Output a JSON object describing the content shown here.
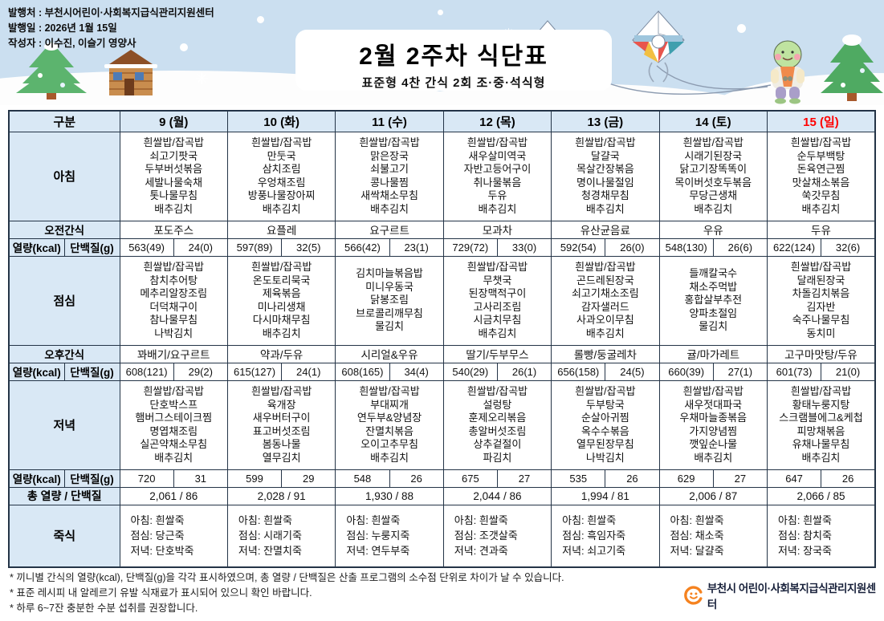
{
  "info": {
    "publisher": "발행처 : 부천시어린이·사회복지급식관리지원센터",
    "publish_date": "발행일 : 2026년 1월 15일",
    "author": "작성자 : 이수진, 이슬기 영양사"
  },
  "title": {
    "main": "2월 2주차 식단표",
    "subtitle": "표준형 4찬 간식 2회 조·중·석식형"
  },
  "table": {
    "labels": {
      "gubun": "구분",
      "breakfast": "아침",
      "am_snack": "오전간식",
      "kcal": "열량(kcal)",
      "protein": "단백질(g)",
      "lunch": "점심",
      "pm_snack": "오후간식",
      "dinner": "저녁",
      "total": "총 열량 / 단백질",
      "porridge": "죽식"
    },
    "days": [
      {
        "label": "9 (월)",
        "breakfast": [
          "흰쌀밥/잡곡밥",
          "쇠고기팟국",
          "두부버섯볶음",
          "세발나물숙채",
          "톳나물무침",
          "배추김치"
        ],
        "am_snack": "포도주스",
        "breakfast_kcal": "563(49)",
        "breakfast_protein": "24(0)",
        "lunch": [
          "흰쌀밥/잡곡밥",
          "참치추어탕",
          "메추리알장조림",
          "더덕채구이",
          "참나물무침",
          "나박김치"
        ],
        "pm_snack": "꽈배기/요구르트",
        "lunch_kcal": "608(121)",
        "lunch_protein": "29(2)",
        "dinner": [
          "흰쌀밥/잡곡밥",
          "단호박스프",
          "햄버그스테이크찜",
          "명엽채조림",
          "실곤약채소무침",
          "배추김치"
        ],
        "dinner_kcal": "720",
        "dinner_protein": "31",
        "total": "2,061  /  86",
        "porridge": [
          "아침: 흰쌀죽",
          "점심: 당근죽",
          "저녁: 단호박죽"
        ]
      },
      {
        "label": "10 (화)",
        "breakfast": [
          "흰쌀밥/잡곡밥",
          "만둣국",
          "삼치조림",
          "우엉채조림",
          "방풍나물장아찌",
          "배추김치"
        ],
        "am_snack": "요플레",
        "breakfast_kcal": "597(89)",
        "breakfast_protein": "32(5)",
        "lunch": [
          "흰쌀밥/잡곡밥",
          "온도토리묵국",
          "제육볶음",
          "미나리생채",
          "다시마채무침",
          "배추김치"
        ],
        "pm_snack": "약과/두유",
        "lunch_kcal": "615(127)",
        "lunch_protein": "24(1)",
        "dinner": [
          "흰쌀밥/잡곡밥",
          "육개장",
          "새우버터구이",
          "표고버섯조림",
          "봄동나물",
          "열무김치"
        ],
        "dinner_kcal": "599",
        "dinner_protein": "29",
        "total": "2,028  /  91",
        "porridge": [
          "아침: 흰쌀죽",
          "점심: 시래기죽",
          "저녁: 잔멸치죽"
        ]
      },
      {
        "label": "11 (수)",
        "breakfast": [
          "흰쌀밥/잡곡밥",
          "맑은장국",
          "쇠불고기",
          "콩나물찜",
          "새싹채소무침",
          "배추김치"
        ],
        "am_snack": "요구르트",
        "breakfast_kcal": "566(42)",
        "breakfast_protein": "23(1)",
        "lunch": [
          "김치마늘볶음밥",
          "미니우동국",
          "닭봉조림",
          "브로콜리깨무침",
          "물김치"
        ],
        "pm_snack": "시리얼&우유",
        "lunch_kcal": "608(165)",
        "lunch_protein": "34(4)",
        "dinner": [
          "흰쌀밥/잡곡밥",
          "부대찌개",
          "연두부&양념장",
          "잔멸치볶음",
          "오이고추무침",
          "배추김치"
        ],
        "dinner_kcal": "548",
        "dinner_protein": "26",
        "total": "1,930  /  88",
        "porridge": [
          "아침: 흰쌀죽",
          "점심: 누룽지죽",
          "저녁: 연두부죽"
        ]
      },
      {
        "label": "12 (목)",
        "breakfast": [
          "흰쌀밥/잡곡밥",
          "새우살미역국",
          "자반고등어구이",
          "취나물볶음",
          "두유",
          "배추김치"
        ],
        "am_snack": "모과차",
        "breakfast_kcal": "729(72)",
        "breakfast_protein": "33(0)",
        "lunch": [
          "흰쌀밥/잡곡밥",
          "무챗국",
          "된장맥적구이",
          "고사리조림",
          "시금치무침",
          "배추김치"
        ],
        "pm_snack": "딸기/두부무스",
        "lunch_kcal": "540(29)",
        "lunch_protein": "26(1)",
        "dinner": [
          "흰쌀밥/잡곡밥",
          "설렁탕",
          "훈제오리볶음",
          "총알버섯조림",
          "상추겉절이",
          "파김치"
        ],
        "dinner_kcal": "675",
        "dinner_protein": "27",
        "total": "2,044  /  86",
        "porridge": [
          "아침: 흰쌀죽",
          "점심: 조갯살죽",
          "저녁: 견과죽"
        ]
      },
      {
        "label": "13 (금)",
        "breakfast": [
          "흰쌀밥/잡곡밥",
          "달걀국",
          "목살간장볶음",
          "명이나물절임",
          "청경채무침",
          "배추김치"
        ],
        "am_snack": "유산균음료",
        "breakfast_kcal": "592(54)",
        "breakfast_protein": "26(0)",
        "lunch": [
          "흰쌀밥/잡곡밥",
          "곤드레된장국",
          "쇠고기채소조림",
          "감자샐러드",
          "사과오이무침",
          "배추김치"
        ],
        "pm_snack": "롤빵/둥굴레차",
        "lunch_kcal": "656(158)",
        "lunch_protein": "24(5)",
        "dinner": [
          "흰쌀밥/잡곡밥",
          "두부탕국",
          "순살아귀찜",
          "옥수수볶음",
          "열무된장무침",
          "나박김치"
        ],
        "dinner_kcal": "535",
        "dinner_protein": "26",
        "total": "1,994  /  81",
        "porridge": [
          "아침: 흰쌀죽",
          "점심: 흑임자죽",
          "저녁: 쇠고기죽"
        ]
      },
      {
        "label": "14 (토)",
        "breakfast": [
          "흰쌀밥/잡곡밥",
          "시래기된장국",
          "닭고기장똑똑이",
          "목이버섯호두볶음",
          "무당근생채",
          "배추김치"
        ],
        "am_snack": "우유",
        "breakfast_kcal": "548(130)",
        "breakfast_protein": "26(6)",
        "lunch": [
          "들깨칼국수",
          "채소주먹밥",
          "홍합살부추전",
          "양파초절임",
          "물김치"
        ],
        "pm_snack": "귤/마가레트",
        "lunch_kcal": "660(39)",
        "lunch_protein": "27(1)",
        "dinner": [
          "흰쌀밥/잡곡밥",
          "새우젓대파국",
          "우채마늘종볶음",
          "가지양념찜",
          "깻잎순나물",
          "배추김치"
        ],
        "dinner_kcal": "629",
        "dinner_protein": "27",
        "total": "2,006  /  87",
        "porridge": [
          "아침: 흰쌀죽",
          "점심: 채소죽",
          "저녁: 달걀죽"
        ]
      },
      {
        "label": "15 (일)",
        "breakfast": [
          "흰쌀밥/잡곡밥",
          "순두부백탕",
          "돈육연근찜",
          "맛살채소볶음",
          "쑥갓무침",
          "배추김치"
        ],
        "am_snack": "두유",
        "breakfast_kcal": "622(124)",
        "breakfast_protein": "32(6)",
        "lunch": [
          "흰쌀밥/잡곡밥",
          "달래된장국",
          "차돌김치볶음",
          "김자반",
          "숙주나물무침",
          "동치미"
        ],
        "pm_snack": "고구마맛탕/두유",
        "lunch_kcal": "601(73)",
        "lunch_protein": "21(0)",
        "dinner": [
          "흰쌀밥/잡곡밥",
          "황태누룽지탕",
          "스크램블에그&케첩",
          "피망채볶음",
          "유채나물무침",
          "배추김치"
        ],
        "dinner_kcal": "647",
        "dinner_protein": "26",
        "total": "2,066  /  85",
        "porridge": [
          "아침: 흰쌀죽",
          "점심: 참치죽",
          "저녁: 장국죽"
        ]
      }
    ]
  },
  "footnotes": [
    "* 끼니별 간식의 열량(kcal), 단백질(g)을 각각 표시하였으며, 총 열량 / 단백질은 산출 프로그램의 소수점 단위로 차이가 날 수 있습니다.",
    "* 표준 레시피 내 알레르기 유발 식재료가 표시되어 있으니 확인 바랍니다.",
    "* 하루 6~7잔 충분한 수분 섭취를 권장합니다."
  ],
  "logo": {
    "text": "부천시 어린이·사회복지급식관리지원센터"
  },
  "colors": {
    "header_sky": "#cbdff0",
    "table_header_bg": "#d9e8f5",
    "table_border": "#243447",
    "sunday_red": "#ff0000",
    "logo_orange": "#f5821f"
  }
}
